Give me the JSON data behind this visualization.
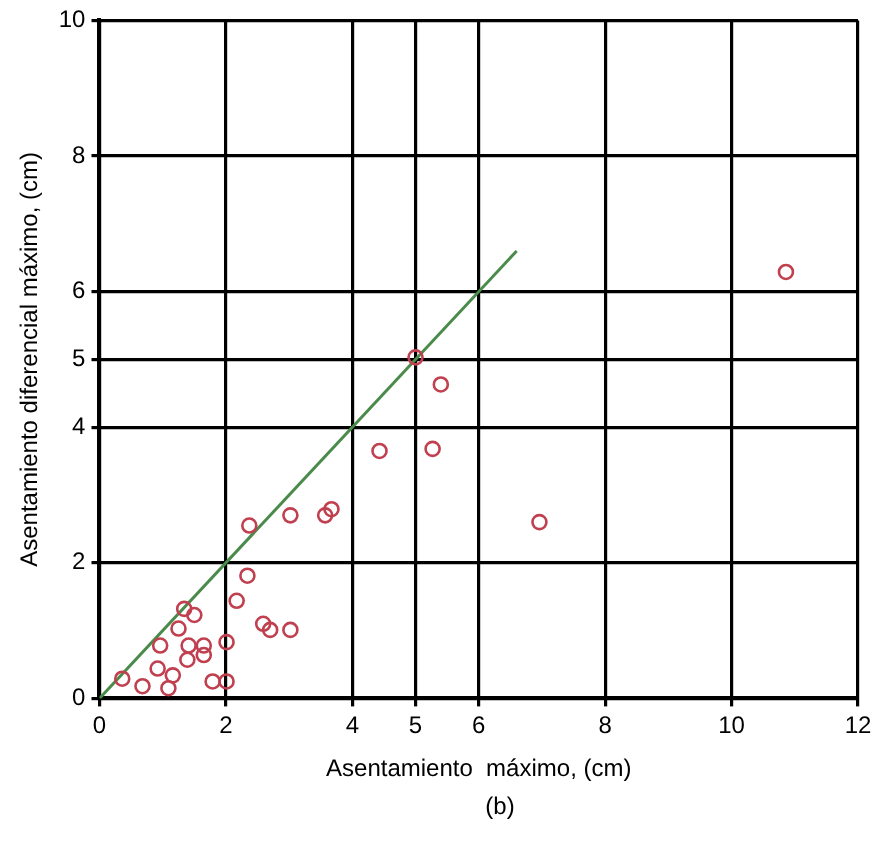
{
  "chart_data": {
    "type": "scatter",
    "xlabel": "Asentamiento  máximo, (cm)",
    "ylabel": "Asentamiento diferencial máximo, (cm)",
    "annotations": [
      "(b)"
    ],
    "xlim": [
      0,
      12
    ],
    "xticks": [
      0,
      2,
      4,
      5,
      6,
      8,
      10,
      12
    ],
    "ylim": [
      0,
      10
    ],
    "yticks": [
      0,
      2,
      4,
      5,
      6,
      8,
      10
    ],
    "grid": true,
    "legend": false,
    "marker": "circle",
    "series": [
      {
        "color": "#c0404f",
        "x": [
          0.36,
          0.68,
          0.92,
          0.96,
          1.09,
          1.16,
          1.25,
          1.34,
          1.5,
          1.41,
          1.39,
          1.65,
          1.65,
          1.79,
          2.01,
          2.01,
          2.17,
          2.34,
          2.37,
          2.59,
          2.7,
          3.02,
          3.02,
          3.57,
          3.67,
          4.43,
          5.0,
          5.4,
          5.27,
          6.96,
          10.86
        ],
        "values": [
          0.29,
          0.18,
          0.44,
          0.78,
          0.15,
          0.34,
          1.03,
          1.32,
          1.23,
          0.78,
          0.57,
          0.78,
          0.64,
          0.25,
          0.25,
          0.83,
          1.44,
          1.81,
          2.55,
          1.1,
          1.01,
          1.01,
          2.7,
          2.7,
          2.79,
          3.65,
          5.03,
          4.63,
          3.68,
          2.6,
          6.29
        ]
      },
      {
        "type": "line",
        "color": "#4a8a4a",
        "marker": "none",
        "x": [
          0,
          6.6
        ],
        "values": [
          0,
          6.6
        ]
      }
    ]
  }
}
